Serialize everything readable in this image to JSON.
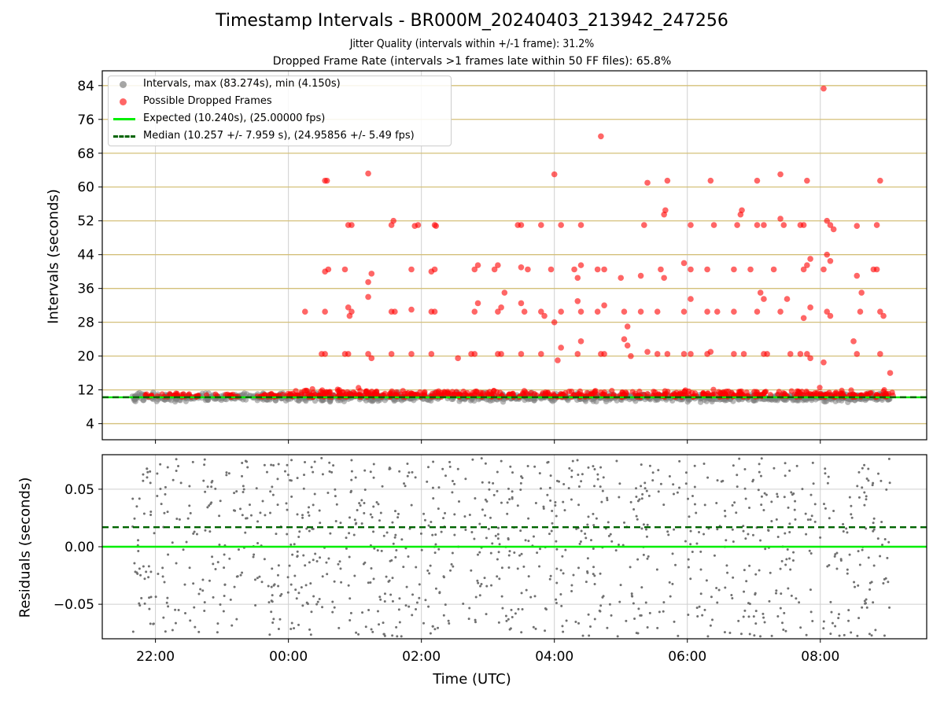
{
  "chart_data": [
    {
      "type": "scatter",
      "title": "Timestamp Intervals - BR000M_20240403_213942_247256",
      "subtitle_lines": [
        "Jitter Quality (intervals within +/-1 frame): 31.2%",
        "Dropped Frame Rate (intervals >1 frames late within 50 FF files): 65.8%"
      ],
      "xlabel": "",
      "ylabel": "Intervals (seconds)",
      "x_unit": "hours relative to 00:00 UTC",
      "xlim": [
        -2.8,
        9.6
      ],
      "ylim": [
        0.2,
        87.5
      ],
      "yticks": [
        4,
        12,
        20,
        28,
        36,
        44,
        52,
        60,
        68,
        76,
        84
      ],
      "grid": true,
      "horizontal_grid_color": "#d4c07a",
      "legend_position": "top-left",
      "legend": [
        {
          "label": "Intervals, max (83.274s), min (4.150s)",
          "kind": "marker",
          "color": "#808080"
        },
        {
          "label": "Possible Dropped Frames",
          "kind": "marker",
          "color": "#ff0000"
        },
        {
          "label": "Expected (10.240s), (25.00000 fps)",
          "kind": "line",
          "color": "#00ee00"
        },
        {
          "label": "Median (10.257 +/- 7.959 s), (24.95856 +/- 5.49 fps)",
          "kind": "dashed",
          "color": "#006400"
        }
      ],
      "expected_value": 10.24,
      "median_value": 10.257,
      "series": [
        {
          "name": "Intervals, max (83.274s), min (4.150s)",
          "color": "#808080",
          "points": "dense band of intervals between about 5 and 13 s from 21:45 to 09:00 UTC"
        },
        {
          "name": "Possible Dropped Frames",
          "color": "#ff0000",
          "points": [
            [
              0.55,
              61.5
            ],
            [
              0.58,
              61.5
            ],
            [
              1.2,
              63.2
            ],
            [
              4.7,
              72
            ],
            [
              8.05,
              83.3
            ],
            [
              4.0,
              63
            ],
            [
              5.4,
              61
            ],
            [
              5.7,
              61.5
            ],
            [
              6.35,
              61.5
            ],
            [
              7.05,
              61.5
            ],
            [
              7.4,
              63
            ],
            [
              7.8,
              61.5
            ],
            [
              8.9,
              61.5
            ],
            [
              0.9,
              51
            ],
            [
              0.95,
              51
            ],
            [
              1.55,
              51
            ],
            [
              1.58,
              52
            ],
            [
              1.9,
              50.8
            ],
            [
              1.95,
              51
            ],
            [
              2.2,
              51
            ],
            [
              2.22,
              50.8
            ],
            [
              3.45,
              51
            ],
            [
              3.5,
              51
            ],
            [
              3.8,
              51
            ],
            [
              4.1,
              51
            ],
            [
              4.4,
              51
            ],
            [
              5.35,
              51
            ],
            [
              5.65,
              53.5
            ],
            [
              5.67,
              54.5
            ],
            [
              6.05,
              51
            ],
            [
              6.4,
              51
            ],
            [
              6.75,
              51
            ],
            [
              6.8,
              53.5
            ],
            [
              6.82,
              54.5
            ],
            [
              7.05,
              51
            ],
            [
              7.15,
              51
            ],
            [
              7.4,
              52.5
            ],
            [
              7.45,
              51
            ],
            [
              7.7,
              51
            ],
            [
              7.75,
              51
            ],
            [
              8.1,
              52
            ],
            [
              8.15,
              51
            ],
            [
              8.2,
              50
            ],
            [
              8.55,
              50.8
            ],
            [
              8.85,
              51
            ],
            [
              0.55,
              40
            ],
            [
              0.6,
              40.5
            ],
            [
              0.85,
              40.5
            ],
            [
              1.2,
              37.5
            ],
            [
              1.25,
              39.5
            ],
            [
              1.85,
              40.5
            ],
            [
              2.15,
              40
            ],
            [
              2.2,
              40.5
            ],
            [
              2.8,
              40.5
            ],
            [
              2.85,
              41.5
            ],
            [
              3.1,
              40.5
            ],
            [
              3.15,
              41.5
            ],
            [
              3.5,
              41
            ],
            [
              3.6,
              40.5
            ],
            [
              3.95,
              40.5
            ],
            [
              4.3,
              40.5
            ],
            [
              4.35,
              38.5
            ],
            [
              4.4,
              41.5
            ],
            [
              4.65,
              40.5
            ],
            [
              4.75,
              40.5
            ],
            [
              5.0,
              38.5
            ],
            [
              5.3,
              39
            ],
            [
              5.6,
              40.5
            ],
            [
              5.65,
              38.5
            ],
            [
              5.95,
              42
            ],
            [
              6.05,
              40.5
            ],
            [
              6.3,
              40.5
            ],
            [
              6.7,
              40.5
            ],
            [
              6.95,
              40.5
            ],
            [
              7.3,
              40.5
            ],
            [
              7.75,
              40.5
            ],
            [
              7.8,
              41.5
            ],
            [
              7.85,
              43
            ],
            [
              8.05,
              40.5
            ],
            [
              8.1,
              44
            ],
            [
              8.15,
              42.5
            ],
            [
              8.55,
              39
            ],
            [
              8.8,
              40.5
            ],
            [
              8.85,
              40.5
            ],
            [
              0.25,
              30.5
            ],
            [
              0.55,
              30.5
            ],
            [
              0.9,
              31.5
            ],
            [
              0.92,
              29.5
            ],
            [
              0.95,
              30.5
            ],
            [
              1.2,
              34
            ],
            [
              1.55,
              30.5
            ],
            [
              1.6,
              30.5
            ],
            [
              1.85,
              31
            ],
            [
              2.15,
              30.5
            ],
            [
              2.2,
              30.5
            ],
            [
              2.8,
              30.5
            ],
            [
              2.85,
              32.5
            ],
            [
              3.15,
              30.5
            ],
            [
              3.2,
              31.5
            ],
            [
              3.25,
              35
            ],
            [
              3.5,
              32.5
            ],
            [
              3.55,
              30.5
            ],
            [
              3.8,
              30.5
            ],
            [
              3.85,
              29.5
            ],
            [
              4.1,
              30.5
            ],
            [
              4.35,
              33
            ],
            [
              4.4,
              30.5
            ],
            [
              4.65,
              30.5
            ],
            [
              4.75,
              32
            ],
            [
              5.05,
              30.5
            ],
            [
              5.1,
              27
            ],
            [
              5.3,
              30.5
            ],
            [
              5.55,
              30.5
            ],
            [
              5.95,
              30.5
            ],
            [
              6.05,
              33.5
            ],
            [
              6.3,
              30.5
            ],
            [
              6.45,
              30.5
            ],
            [
              6.7,
              30.5
            ],
            [
              7.05,
              30.5
            ],
            [
              7.1,
              35
            ],
            [
              7.15,
              33.5
            ],
            [
              7.4,
              30.5
            ],
            [
              7.5,
              33.5
            ],
            [
              7.75,
              29
            ],
            [
              7.85,
              31.5
            ],
            [
              8.1,
              30.5
            ],
            [
              8.15,
              29.5
            ],
            [
              8.6,
              30.5
            ],
            [
              8.62,
              35
            ],
            [
              8.9,
              30.5
            ],
            [
              8.95,
              29.5
            ],
            [
              0.5,
              20.5
            ],
            [
              0.55,
              20.5
            ],
            [
              0.85,
              20.5
            ],
            [
              0.9,
              20.5
            ],
            [
              1.2,
              20.5
            ],
            [
              1.25,
              19.5
            ],
            [
              1.55,
              20.5
            ],
            [
              1.85,
              20.5
            ],
            [
              2.15,
              20.5
            ],
            [
              2.55,
              19.5
            ],
            [
              2.75,
              20.5
            ],
            [
              2.8,
              20.5
            ],
            [
              3.15,
              20.5
            ],
            [
              3.2,
              20.5
            ],
            [
              3.5,
              20.5
            ],
            [
              3.8,
              20.5
            ],
            [
              4.0,
              28
            ],
            [
              4.05,
              19
            ],
            [
              4.1,
              22
            ],
            [
              4.35,
              20.5
            ],
            [
              4.4,
              23.5
            ],
            [
              4.7,
              20.5
            ],
            [
              4.75,
              20.5
            ],
            [
              5.05,
              24
            ],
            [
              5.1,
              22.5
            ],
            [
              5.15,
              20
            ],
            [
              5.4,
              21
            ],
            [
              5.55,
              20.5
            ],
            [
              5.7,
              20.5
            ],
            [
              5.95,
              20.5
            ],
            [
              6.05,
              20.5
            ],
            [
              6.3,
              20.5
            ],
            [
              6.35,
              21
            ],
            [
              6.7,
              20.5
            ],
            [
              6.85,
              20.5
            ],
            [
              7.15,
              20.5
            ],
            [
              7.2,
              20.5
            ],
            [
              7.55,
              20.5
            ],
            [
              7.7,
              20.5
            ],
            [
              7.8,
              20.5
            ],
            [
              7.85,
              19.5
            ],
            [
              8.05,
              18.5
            ],
            [
              8.5,
              23.5
            ],
            [
              8.55,
              20.5
            ],
            [
              8.9,
              20.5
            ],
            [
              9.05,
              16
            ]
          ]
        }
      ]
    },
    {
      "type": "scatter",
      "title": "",
      "xlabel": "Time (UTC)",
      "ylabel": "Residuals (seconds)",
      "xlim": [
        -2.8,
        9.6
      ],
      "ylim": [
        -0.08,
        0.08
      ],
      "yticks": [
        0.05,
        0.0,
        -0.05
      ],
      "ytick_labels": [
        "0.05",
        "0.00",
        "−0.05"
      ],
      "xticks": [
        -2,
        0,
        2,
        4,
        6,
        8
      ],
      "xtick_labels": [
        "22:00",
        "00:00",
        "02:00",
        "04:00",
        "06:00",
        "08:00"
      ],
      "grid": true,
      "expected_line": 0.0,
      "median_line": 0.017,
      "series": [
        {
          "name": "",
          "color": "#707070",
          "points": "dense random residuals spread uniformly between -0.08 and 0.08 s from 21:45 to 09:00 UTC"
        }
      ]
    }
  ]
}
